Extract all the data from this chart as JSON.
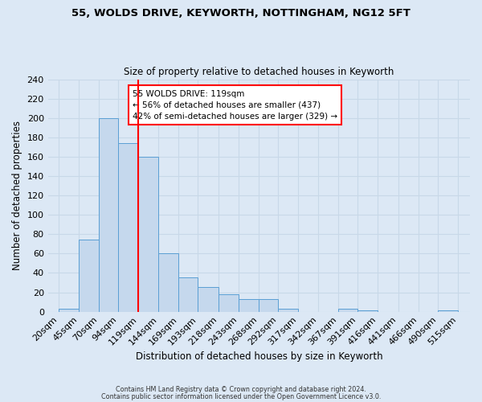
{
  "title1": "55, WOLDS DRIVE, KEYWORTH, NOTTINGHAM, NG12 5FT",
  "title2": "Size of property relative to detached houses in Keyworth",
  "xlabel": "Distribution of detached houses by size in Keyworth",
  "ylabel": "Number of detached properties",
  "bar_left_edges": [
    20,
    45,
    70,
    94,
    119,
    144,
    169,
    193,
    218,
    243,
    268,
    292,
    317,
    342,
    367,
    391,
    416,
    441,
    466,
    490
  ],
  "bar_widths": [
    25,
    25,
    24,
    25,
    25,
    25,
    24,
    25,
    25,
    25,
    24,
    25,
    25,
    25,
    24,
    25,
    25,
    25,
    24,
    25
  ],
  "bar_heights": [
    3,
    74,
    200,
    174,
    160,
    60,
    35,
    25,
    18,
    13,
    13,
    3,
    0,
    0,
    3,
    1,
    0,
    0,
    0,
    1
  ],
  "bar_color": "#c5d8ed",
  "bar_edge_color": "#5a9fd4",
  "vline_x": 119,
  "vline_color": "red",
  "annotation_title": "55 WOLDS DRIVE: 119sqm",
  "annotation_line1": "← 56% of detached houses are smaller (437)",
  "annotation_line2": "42% of semi-detached houses are larger (329) →",
  "annotation_box_color": "white",
  "annotation_box_edge": "red",
  "tick_labels": [
    "20sqm",
    "45sqm",
    "70sqm",
    "94sqm",
    "119sqm",
    "144sqm",
    "169sqm",
    "193sqm",
    "218sqm",
    "243sqm",
    "268sqm",
    "292sqm",
    "317sqm",
    "342sqm",
    "367sqm",
    "391sqm",
    "416sqm",
    "441sqm",
    "466sqm",
    "490sqm",
    "515sqm"
  ],
  "tick_positions": [
    20,
    45,
    70,
    94,
    119,
    144,
    169,
    193,
    218,
    243,
    268,
    292,
    317,
    342,
    367,
    391,
    416,
    441,
    466,
    490,
    515
  ],
  "ylim": [
    0,
    240
  ],
  "xlim": [
    7,
    530
  ],
  "yticks": [
    0,
    20,
    40,
    60,
    80,
    100,
    120,
    140,
    160,
    180,
    200,
    220,
    240
  ],
  "grid_color": "#c8d8e8",
  "bg_color": "#dce8f5",
  "plot_bg_color": "#dce8f5",
  "footer1": "Contains HM Land Registry data © Crown copyright and database right 2024.",
  "footer2": "Contains public sector information licensed under the Open Government Licence v3.0."
}
